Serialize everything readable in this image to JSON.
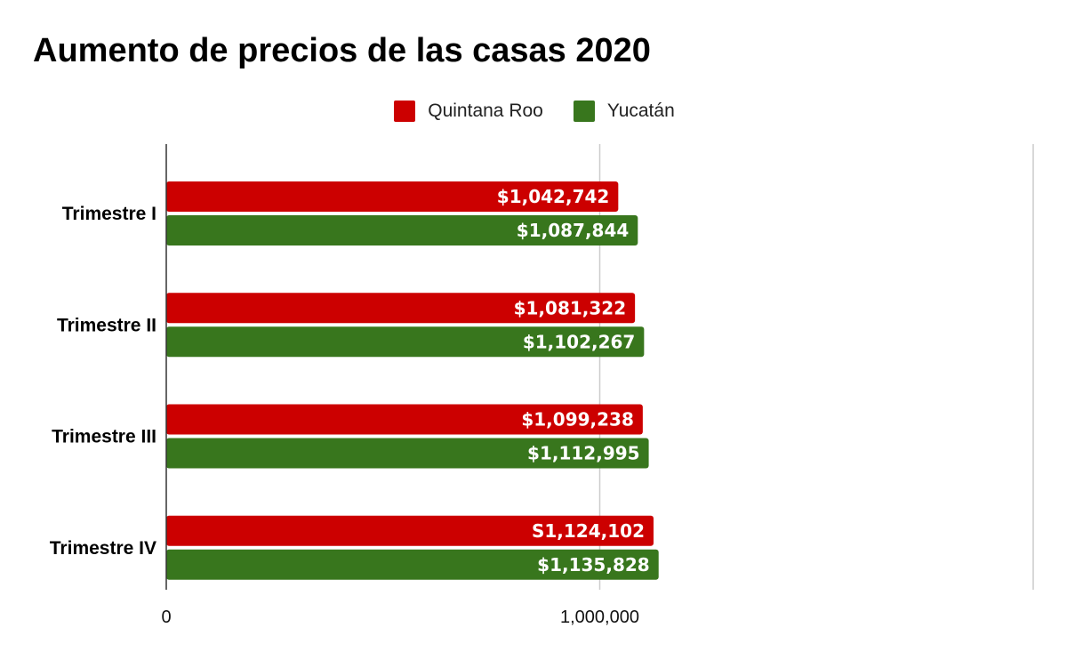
{
  "chart_data": {
    "type": "bar",
    "orientation": "horizontal",
    "title": "Aumento de precios de las casas 2020",
    "categories": [
      "Trimestre I",
      "Trimestre II",
      "Trimestre III",
      "Trimestre IV"
    ],
    "series": [
      {
        "name": "Quintana Roo",
        "color": "#cc0000",
        "values": [
          1042742,
          1081322,
          1099238,
          1124102
        ],
        "labels": [
          "$1,042,742",
          "$1,081,322",
          "$1,099,238",
          "S1,124,102"
        ]
      },
      {
        "name": "Yucatán",
        "color": "#38761d",
        "values": [
          1087844,
          1102267,
          1112995,
          1135828
        ],
        "labels": [
          "$1,087,844",
          "$1,102,267",
          "$1,112,995",
          "$1,135,828"
        ]
      }
    ],
    "xlim": [
      0,
      2000000
    ],
    "x_ticks": [
      {
        "value": 0,
        "label": "0"
      },
      {
        "value": 1000000,
        "label": "1,000,000"
      }
    ],
    "grid": true,
    "legend_position": "top-center",
    "xlabel": "",
    "ylabel": ""
  }
}
